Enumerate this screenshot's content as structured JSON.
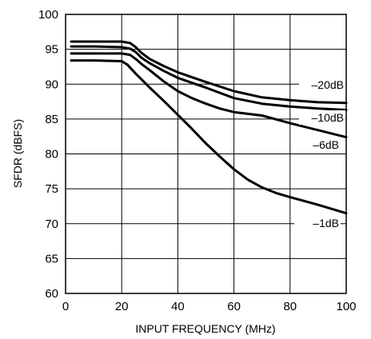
{
  "chart_data": {
    "type": "line",
    "xlabel": "INPUT FREQUENCY (MHz)",
    "ylabel": "SFDR (dBFS)",
    "xlim": [
      0,
      100
    ],
    "ylim": [
      60,
      100
    ],
    "xticks": [
      0,
      20,
      40,
      60,
      80,
      100
    ],
    "yticks": [
      60,
      65,
      70,
      75,
      80,
      85,
      90,
      95,
      100
    ],
    "grid": true,
    "series": [
      {
        "name": "–20dB",
        "x": [
          2,
          10,
          20,
          23,
          25,
          27,
          30,
          35,
          40,
          50,
          60,
          70,
          80,
          90,
          100
        ],
        "y": [
          96.1,
          96.1,
          96.1,
          95.9,
          95.3,
          94.5,
          93.6,
          92.6,
          91.7,
          90.3,
          89.0,
          88.1,
          87.7,
          87.4,
          87.3
        ]
      },
      {
        "name": "–10dB",
        "x": [
          2,
          10,
          20,
          23,
          25,
          27,
          30,
          35,
          40,
          50,
          60,
          70,
          80,
          90,
          100
        ],
        "y": [
          95.4,
          95.4,
          95.3,
          95.1,
          94.6,
          93.8,
          93.0,
          91.9,
          90.9,
          89.5,
          88.0,
          87.2,
          86.8,
          86.5,
          86.3
        ]
      },
      {
        "name": "–6dB",
        "x": [
          2,
          10,
          20,
          23,
          25,
          27,
          30,
          35,
          40,
          45,
          50,
          55,
          60,
          70,
          80,
          90,
          100
        ],
        "y": [
          94.4,
          94.4,
          94.4,
          94.2,
          93.6,
          92.9,
          92.0,
          90.4,
          89.0,
          88.0,
          87.2,
          86.5,
          86.0,
          85.5,
          84.4,
          83.4,
          82.4
        ]
      },
      {
        "name": "–1dB",
        "x": [
          2,
          10,
          20,
          22,
          25,
          30,
          35,
          40,
          45,
          50,
          55,
          60,
          65,
          70,
          75,
          80,
          90,
          100
        ],
        "y": [
          93.4,
          93.4,
          93.3,
          92.8,
          91.5,
          89.5,
          87.6,
          85.6,
          83.6,
          81.5,
          79.6,
          77.8,
          76.3,
          75.2,
          74.4,
          73.8,
          72.7,
          71.5
        ]
      }
    ]
  }
}
